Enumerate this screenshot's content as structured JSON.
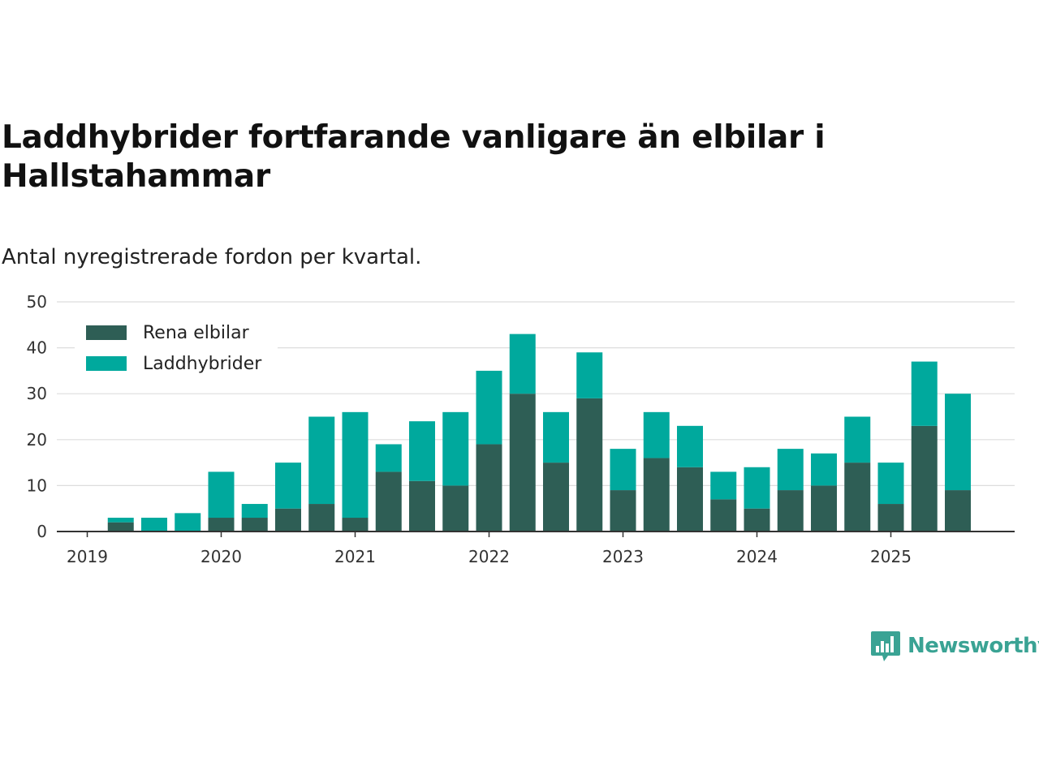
{
  "title": "Laddhybrider fortfarande vanligare än elbilar i Hallstahammar",
  "subtitle": "Antal nyregistrerade fordon per kvartal.",
  "brand": {
    "name": "Newsworthy",
    "icon": "newsworthy-logo-icon",
    "color": "#3aa394"
  },
  "chart_data": {
    "type": "bar",
    "stacked": true,
    "title": "Laddhybrider fortfarande vanligare än elbilar i Hallstahammar",
    "subtitle": "Antal nyregistrerade fordon per kvartal.",
    "xlabel": "",
    "ylabel": "",
    "ylim": [
      0,
      50
    ],
    "yticks": [
      0,
      10,
      20,
      30,
      40,
      50
    ],
    "grid": true,
    "legend_position": "top-left",
    "xticks": [
      "2019",
      "2020",
      "2021",
      "2022",
      "2023",
      "2024",
      "2025"
    ],
    "categories": [
      "2019 Q1",
      "2019 Q2",
      "2019 Q3",
      "2019 Q4",
      "2020 Q1",
      "2020 Q2",
      "2020 Q3",
      "2020 Q4",
      "2021 Q1",
      "2021 Q2",
      "2021 Q3",
      "2021 Q4",
      "2022 Q1",
      "2022 Q2",
      "2022 Q3",
      "2022 Q4",
      "2023 Q1",
      "2023 Q2",
      "2023 Q3",
      "2023 Q4",
      "2024 Q1",
      "2024 Q2",
      "2024 Q3",
      "2024 Q4",
      "2025 Q1",
      "2025 Q2",
      "2025 Q3"
    ],
    "series": [
      {
        "name": "Rena elbilar",
        "color": "#2e5e55",
        "values": [
          0,
          2,
          0,
          0,
          3,
          3,
          5,
          6,
          3,
          13,
          11,
          10,
          19,
          30,
          15,
          29,
          9,
          16,
          14,
          7,
          5,
          9,
          10,
          15,
          6,
          23,
          9
        ]
      },
      {
        "name": "Laddhybrider",
        "color": "#00a99d",
        "values": [
          0,
          1,
          3,
          4,
          10,
          3,
          10,
          19,
          23,
          6,
          13,
          16,
          16,
          13,
          11,
          10,
          9,
          10,
          9,
          6,
          9,
          9,
          7,
          10,
          9,
          14,
          21
        ]
      }
    ]
  }
}
